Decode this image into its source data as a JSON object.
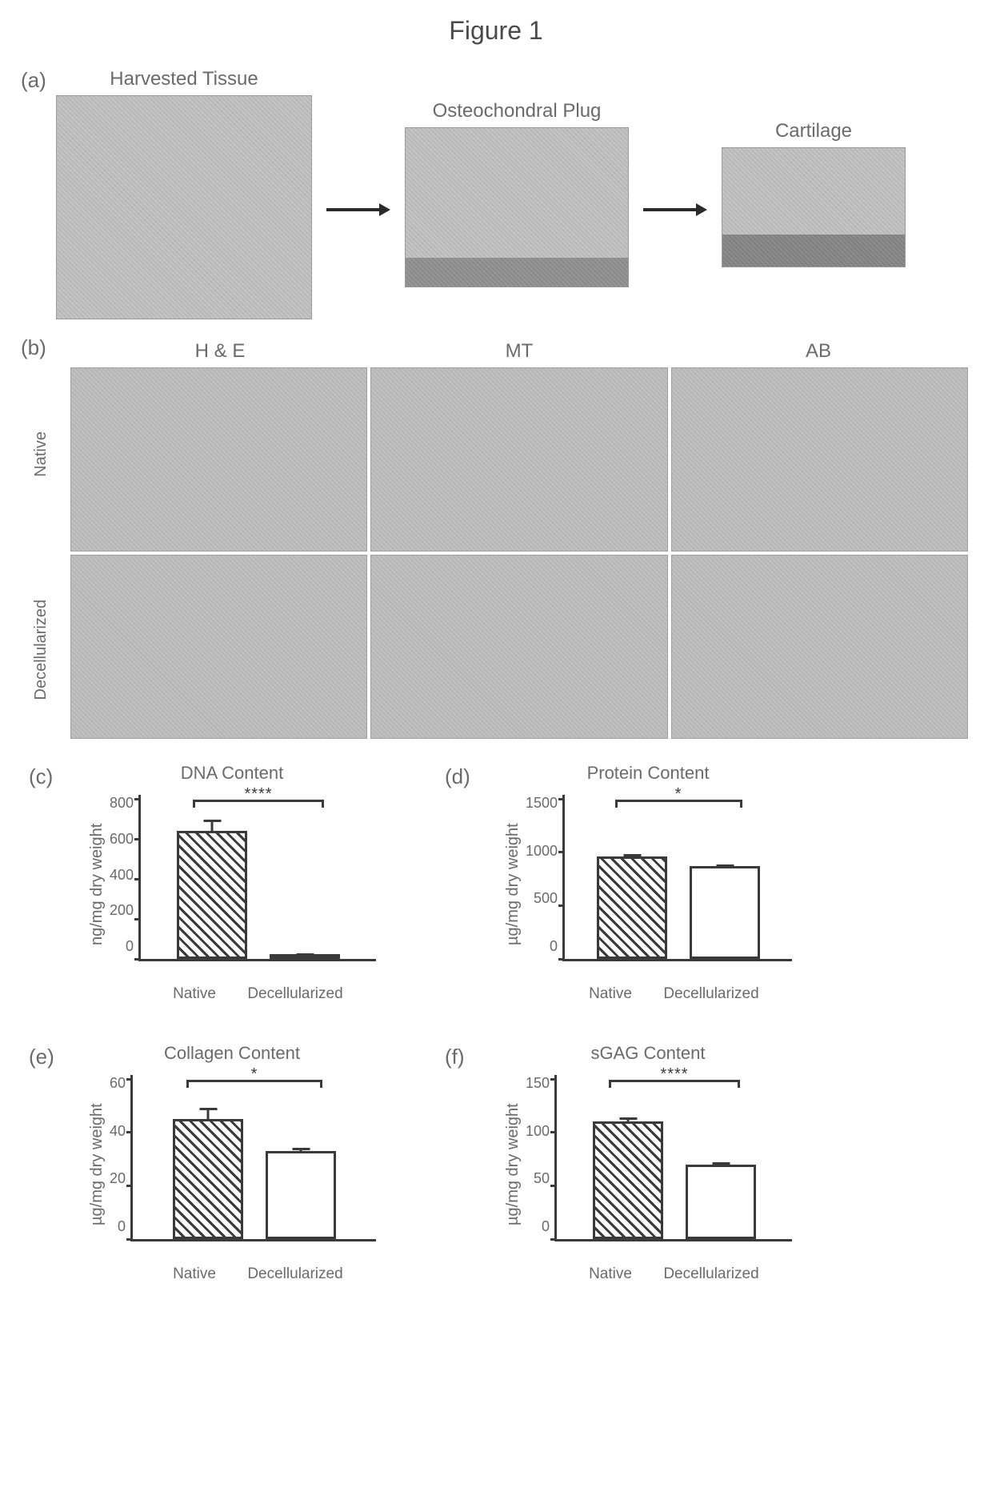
{
  "figure_title": "Figure 1",
  "panel_a": {
    "label": "(a)",
    "items": [
      {
        "caption": "Harvested Tissue"
      },
      {
        "caption": "Osteochondral Plug"
      },
      {
        "caption": "Cartilage"
      }
    ]
  },
  "panel_b": {
    "label": "(b)",
    "col_headers": [
      "H & E",
      "MT",
      "AB"
    ],
    "row_labels": [
      "Native",
      "Decellularized"
    ]
  },
  "charts": {
    "c": {
      "panel_label": "(c)",
      "type": "bar",
      "title": "DNA Content",
      "ylabel": "ng/mg dry weight",
      "ylim": [
        0,
        800
      ],
      "yticks": [
        0,
        200,
        400,
        600,
        800
      ],
      "categories": [
        "Native",
        "Decellularized"
      ],
      "values": [
        640,
        8
      ],
      "errors": [
        70,
        5
      ],
      "bar_fill": [
        "hatched",
        "plain"
      ],
      "border_color": "#3a3a3a",
      "significance": "****",
      "sig_span_percent": [
        22,
        78
      ],
      "title_fontsize": 22,
      "label_fontsize": 20,
      "tick_fontsize": 18
    },
    "d": {
      "panel_label": "(d)",
      "type": "bar",
      "title": "Protein Content",
      "ylabel": "µg/mg dry weight",
      "ylim": [
        0,
        1500
      ],
      "yticks": [
        0,
        500,
        1000,
        1500
      ],
      "categories": [
        "Native",
        "Decellularized"
      ],
      "values": [
        960,
        870
      ],
      "errors": [
        45,
        35
      ],
      "bar_fill": [
        "hatched",
        "plain"
      ],
      "border_color": "#3a3a3a",
      "significance": "*",
      "sig_span_percent": [
        22,
        78
      ],
      "title_fontsize": 22,
      "label_fontsize": 20,
      "tick_fontsize": 18
    },
    "e": {
      "panel_label": "(e)",
      "type": "bar",
      "title": "Collagen Content",
      "ylabel": "µg/mg dry weight",
      "ylim": [
        0,
        60
      ],
      "yticks": [
        0,
        20,
        40,
        60
      ],
      "categories": [
        "Native",
        "Decellularized"
      ],
      "values": [
        45,
        33
      ],
      "errors": [
        5,
        2
      ],
      "bar_fill": [
        "hatched",
        "plain"
      ],
      "border_color": "#3a3a3a",
      "significance": "*",
      "sig_span_percent": [
        22,
        78
      ],
      "title_fontsize": 22,
      "label_fontsize": 20,
      "tick_fontsize": 18
    },
    "f": {
      "panel_label": "(f)",
      "type": "bar",
      "title": "sGAG Content",
      "ylabel": "µg/mg dry weight",
      "ylim": [
        0,
        150
      ],
      "yticks": [
        0,
        50,
        100,
        150
      ],
      "categories": [
        "Native",
        "Decellularized"
      ],
      "values": [
        110,
        70
      ],
      "errors": [
        6,
        4
      ],
      "bar_fill": [
        "hatched",
        "plain"
      ],
      "border_color": "#3a3a3a",
      "significance": "****",
      "sig_span_percent": [
        22,
        78
      ],
      "title_fontsize": 22,
      "label_fontsize": 20,
      "tick_fontsize": 18
    }
  },
  "colors": {
    "axis": "#3a3a3a",
    "text": "#6a6a6a",
    "photo_light": "#c4c4c4",
    "photo_dark": "#8a8a8a",
    "background": "#ffffff"
  }
}
